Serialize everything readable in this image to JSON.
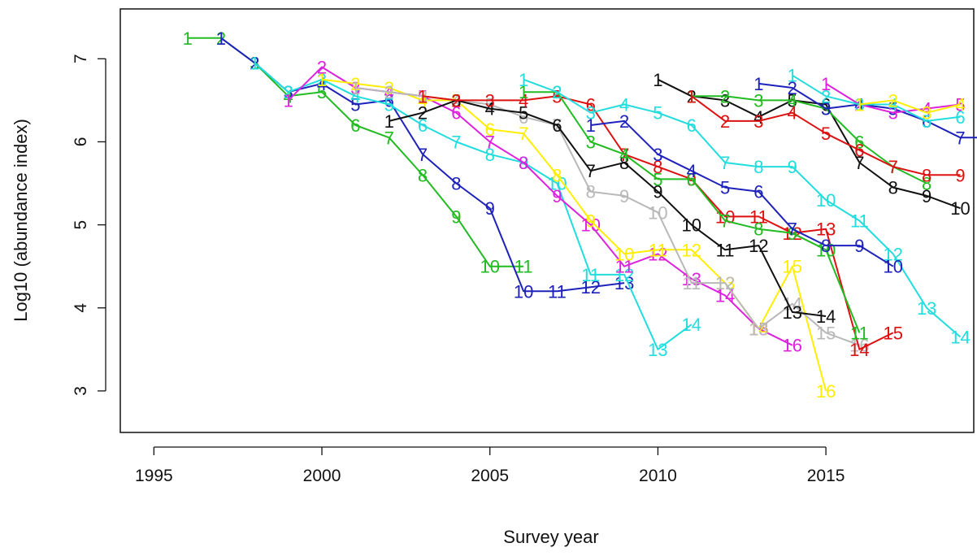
{
  "chart_data": {
    "type": "line",
    "title": "",
    "xlabel": "Survey year",
    "ylabel": "Log10 (abundance index)",
    "xlim": [
      1994,
      2019.4
    ],
    "ylim": [
      2.5,
      7.6
    ],
    "xticks": [
      1995,
      2000,
      2005,
      2010,
      2015
    ],
    "yticks": [
      3,
      4,
      5,
      6,
      7
    ],
    "grid": false,
    "legend": "none",
    "point_labels": "age (years since first survey) printed at each point",
    "series": [
      {
        "color": "#22bb22",
        "start": 1996,
        "values": [
          7.25,
          7.25,
          6.95,
          6.55,
          6.6,
          6.2,
          6.05,
          5.6,
          5.1,
          4.5,
          4.5
        ]
      },
      {
        "color": "#1e22bb",
        "start": 1997,
        "values": [
          7.25,
          6.95,
          6.6,
          6.7,
          6.45,
          6.5,
          5.85,
          5.5,
          5.2,
          4.2,
          4.2,
          4.25,
          4.3
        ]
      },
      {
        "color": "#22dddd",
        "start": 1998,
        "values": [
          6.95,
          6.6,
          6.75,
          6.55,
          6.45,
          6.2,
          6.0,
          5.85,
          5.75,
          5.5,
          4.4,
          4.4,
          3.5,
          3.8
        ]
      },
      {
        "color": "#dd22dd",
        "start": 1999,
        "values": [
          6.5,
          6.9,
          6.65,
          6.6,
          6.55,
          6.35,
          6.0,
          5.75,
          5.35,
          5.0,
          4.5,
          4.65,
          4.35,
          4.15,
          3.75,
          3.55
        ]
      },
      {
        "color": "#ffee00",
        "start": 2000,
        "values": [
          6.75,
          6.7,
          6.65,
          6.5,
          6.5,
          6.15,
          6.1,
          5.6,
          5.05,
          4.65,
          4.7,
          4.7,
          4.3,
          3.75,
          4.5,
          3.0
        ]
      },
      {
        "color": "#b8b8b8",
        "start": 2001,
        "values": [
          6.65,
          6.6,
          6.55,
          6.5,
          6.45,
          6.3,
          6.2,
          5.4,
          5.35,
          5.15,
          4.3,
          4.3,
          3.75,
          4.05,
          3.7,
          3.55
        ]
      },
      {
        "color": "#111111",
        "start": 2002,
        "values": [
          6.25,
          6.35,
          6.5,
          6.4,
          6.35,
          6.2,
          5.65,
          5.75,
          5.4,
          5.0,
          4.7,
          4.75,
          3.95,
          3.9
        ]
      },
      {
        "color": "#dd1111",
        "start": 2003,
        "values": [
          6.55,
          6.5,
          6.5,
          6.5,
          6.55,
          6.45,
          5.85,
          5.7,
          5.55,
          5.1,
          5.1,
          4.9,
          4.95,
          3.5,
          3.7
        ]
      },
      {
        "color": "#22bb22",
        "start": 2006,
        "values": [
          6.6,
          6.6,
          6.0,
          5.85,
          5.55,
          5.55,
          5.05,
          4.95,
          4.9,
          4.7,
          3.7
        ]
      },
      {
        "color": "#22dddd",
        "start": 2006,
        "values": [
          6.75,
          6.6,
          6.35,
          6.45,
          6.35,
          6.2,
          5.75,
          5.7,
          5.7,
          5.3,
          5.05,
          4.65,
          4.0,
          3.65
        ]
      },
      {
        "color": "#1e22bb",
        "start": 2008,
        "values": [
          6.2,
          6.25,
          5.85,
          5.65,
          5.45,
          5.4,
          4.95,
          4.75,
          4.75,
          4.5
        ]
      },
      {
        "color": "#111111",
        "start": 2010,
        "values": [
          6.75,
          6.55,
          6.5,
          6.3,
          6.5,
          6.45,
          5.75,
          5.45,
          5.35,
          5.2
        ]
      },
      {
        "color": "#22bb22",
        "start": 2011,
        "values": [
          6.55,
          6.55,
          6.5,
          6.5,
          6.4,
          6.0,
          5.7,
          5.5
        ]
      },
      {
        "color": "#1e22bb",
        "start": 2013,
        "values": [
          6.7,
          6.65,
          6.4,
          6.45,
          6.4,
          6.25,
          6.05,
          6.05
        ]
      },
      {
        "color": "#dd22dd",
        "start": 2015,
        "values": [
          6.7,
          6.45,
          6.35,
          6.4,
          6.45
        ]
      },
      {
        "color": "#22dddd",
        "start": 2014,
        "values": [
          6.8,
          6.55,
          6.45,
          6.45,
          6.25,
          6.3
        ]
      },
      {
        "color": "#ffee00",
        "start": 2016,
        "values": [
          6.45,
          6.5,
          6.35,
          6.45
        ]
      },
      {
        "color": "#dd1111",
        "start": 2011,
        "values": [
          6.55,
          6.25,
          6.25,
          6.35,
          6.1,
          5.9,
          5.7,
          5.6,
          5.6
        ]
      }
    ]
  }
}
